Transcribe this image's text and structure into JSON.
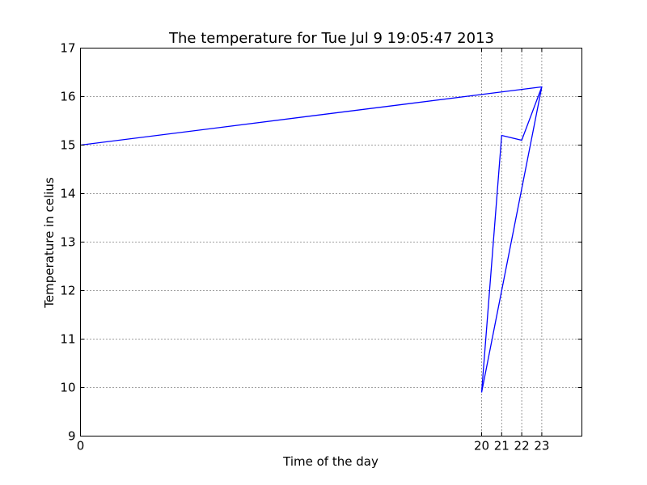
{
  "chart_data": {
    "type": "line",
    "title": "The temperature for  Tue Jul  9 19:05:47 2013",
    "xlabel": "Time of the day",
    "ylabel": "Temperature in celius",
    "xlim": [
      0,
      25
    ],
    "ylim": [
      9,
      17
    ],
    "x_ticks": [
      0,
      20,
      21,
      22,
      23
    ],
    "y_ticks": [
      9,
      10,
      11,
      12,
      13,
      14,
      15,
      16,
      17
    ],
    "grid": true,
    "series": [
      {
        "color": "#0000ff",
        "points": [
          {
            "x": 0,
            "y": 15.0
          },
          {
            "x": 23,
            "y": 16.2
          },
          {
            "x": 20,
            "y": 9.9
          },
          {
            "x": 21,
            "y": 15.2
          },
          {
            "x": 22,
            "y": 15.1
          },
          {
            "x": 23,
            "y": 16.2
          }
        ]
      }
    ]
  }
}
